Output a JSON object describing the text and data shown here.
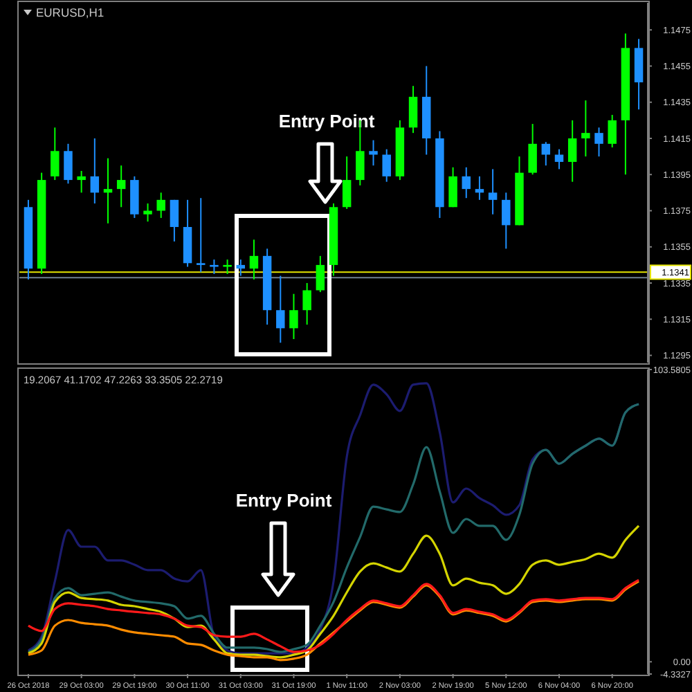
{
  "chart_data": [
    {
      "type": "candlestick",
      "title": "EURUSD,H1",
      "categories": [
        null,
        null,
        null,
        null,
        null,
        null,
        null,
        null,
        null,
        null,
        null,
        null,
        null,
        null,
        null,
        null,
        null,
        null,
        null,
        null,
        null,
        null,
        null,
        null,
        null,
        null,
        null,
        null,
        null,
        null,
        null,
        null,
        null,
        null,
        null,
        null,
        null,
        null,
        null,
        null,
        null,
        null,
        null,
        null,
        null,
        null,
        null
      ],
      "ohlc": [
        [
          1.1377,
          1.1381,
          1.1337,
          1.1343
        ],
        [
          1.1343,
          1.1396,
          1.134,
          1.1392
        ],
        [
          1.1394,
          1.1421,
          1.1392,
          1.1408
        ],
        [
          1.1408,
          1.1412,
          1.139,
          1.1392
        ],
        [
          1.1392,
          1.1397,
          1.1385,
          1.1394
        ],
        [
          1.1394,
          1.1415,
          1.1379,
          1.1385
        ],
        [
          1.1385,
          1.1404,
          1.1368,
          1.1387
        ],
        [
          1.1387,
          1.14,
          1.1377,
          1.1392
        ],
        [
          1.1392,
          1.1394,
          1.1371,
          1.1373
        ],
        [
          1.1373,
          1.1379,
          1.1369,
          1.1375
        ],
        [
          1.1375,
          1.1385,
          1.1371,
          1.1381
        ],
        [
          1.1381,
          1.1381,
          1.1358,
          1.1366
        ],
        [
          1.1366,
          1.1381,
          1.1344,
          1.1346
        ],
        [
          1.1346,
          1.1382,
          1.1341,
          1.1345
        ],
        [
          1.1345,
          1.1348,
          1.134,
          1.1344
        ],
        [
          1.1344,
          1.1348,
          1.134,
          1.1345
        ],
        [
          1.1345,
          1.1348,
          1.1339,
          1.1343
        ],
        [
          1.1343,
          1.1359,
          1.1337,
          1.135
        ],
        [
          1.135,
          1.1354,
          1.1312,
          1.132
        ],
        [
          1.132,
          1.1339,
          1.1302,
          1.131
        ],
        [
          1.131,
          1.1329,
          1.1304,
          1.132
        ],
        [
          1.132,
          1.1335,
          1.1312,
          1.1331
        ],
        [
          1.1331,
          1.135,
          1.133,
          1.1345
        ],
        [
          1.1345,
          1.1379,
          1.1339,
          1.1377
        ],
        [
          1.1377,
          1.1405,
          1.1376,
          1.1392
        ],
        [
          1.1392,
          1.1425,
          1.1389,
          1.1408
        ],
        [
          1.1408,
          1.1414,
          1.14,
          1.1406
        ],
        [
          1.1406,
          1.1409,
          1.1391,
          1.1394
        ],
        [
          1.1394,
          1.1425,
          1.1392,
          1.1421
        ],
        [
          1.1421,
          1.1444,
          1.1418,
          1.1438
        ],
        [
          1.1438,
          1.1455,
          1.1406,
          1.1415
        ],
        [
          1.1415,
          1.1419,
          1.1371,
          1.1377
        ],
        [
          1.1377,
          1.1399,
          1.1377,
          1.1394
        ],
        [
          1.1394,
          1.1399,
          1.1382,
          1.1387
        ],
        [
          1.1387,
          1.1394,
          1.1381,
          1.1385
        ],
        [
          1.1385,
          1.1398,
          1.1373,
          1.1381
        ],
        [
          1.1381,
          1.1385,
          1.1354,
          1.1367
        ],
        [
          1.1367,
          1.1405,
          1.1367,
          1.1396
        ],
        [
          1.1396,
          1.1423,
          1.1395,
          1.1412
        ],
        [
          1.1412,
          1.1413,
          1.14,
          1.1406
        ],
        [
          1.1406,
          1.1409,
          1.1398,
          1.1402
        ],
        [
          1.1402,
          1.1425,
          1.1391,
          1.1415
        ],
        [
          1.1415,
          1.1436,
          1.1405,
          1.1418
        ],
        [
          1.1418,
          1.1421,
          1.1405,
          1.1412
        ],
        [
          1.1412,
          1.1428,
          1.141,
          1.1425
        ],
        [
          1.1425,
          1.1473,
          1.1395,
          1.1465
        ],
        [
          1.1465,
          1.147,
          1.1431,
          1.1446
        ]
      ],
      "colors": [
        "#1e90ff",
        "#00ff00",
        "#00ff00",
        "#1e90ff",
        "#00ff00",
        "#1e90ff",
        "#00ff00",
        "#00ff00",
        "#1e90ff",
        "#00ff00",
        "#00ff00",
        "#1e90ff",
        "#1e90ff",
        "#1e90ff",
        "#1e90ff",
        "#00ff00",
        "#1e90ff",
        "#00ff00",
        "#1e90ff",
        "#1e90ff",
        "#00ff00",
        "#00ff00",
        "#00ff00",
        "#00ff00",
        "#00ff00",
        "#00ff00",
        "#1e90ff",
        "#1e90ff",
        "#00ff00",
        "#00ff00",
        "#1e90ff",
        "#1e90ff",
        "#00ff00",
        "#1e90ff",
        "#1e90ff",
        "#1e90ff",
        "#1e90ff",
        "#00ff00",
        "#00ff00",
        "#1e90ff",
        "#1e90ff",
        "#00ff00",
        "#00ff00",
        "#1e90ff",
        "#00ff00",
        "#00ff00",
        "#1e90ff"
      ],
      "ylim": [
        1.1291,
        1.149
      ],
      "yticks": [
        1.1475,
        1.1455,
        1.1435,
        1.1415,
        1.1395,
        1.1375,
        1.1355,
        1.1335,
        1.1315,
        1.1295
      ],
      "ref_lines": [
        {
          "axis": "y",
          "value": 1.1341,
          "label": "1.1341",
          "color": "#e6e600"
        },
        {
          "axis": "y",
          "value": 1.1338,
          "label": null,
          "color": "#708090"
        }
      ],
      "annotations": [
        "Entry Point"
      ],
      "tick_labels": "y"
    },
    {
      "type": "line",
      "title": "19.2067 41.1702 47.2263 33.3505 22.2719",
      "categories": [
        "26 Oct 2018",
        null,
        null,
        null,
        "29 Oct 03:00",
        null,
        null,
        null,
        "29 Oct 19:00",
        null,
        null,
        null,
        "30 Oct 11:00",
        null,
        null,
        null,
        "31 Oct 03:00",
        null,
        null,
        null,
        "31 Oct 19:00",
        null,
        null,
        null,
        "1 Nov 11:00",
        null,
        null,
        null,
        "2 Nov 03:00",
        null,
        null,
        null,
        "2 Nov 19:00",
        null,
        null,
        null,
        "5 Nov 12:00",
        null,
        null,
        null,
        "6 Nov 04:00",
        null,
        null,
        null,
        "6 Nov 20:00",
        null,
        null
      ],
      "series": [
        {
          "color": "#1c1c70",
          "values": [
            4.0,
            8.9,
            28.5,
            46.7,
            40.8,
            40.8,
            35.9,
            35.9,
            34.4,
            32.5,
            32.5,
            29.5,
            28.5,
            32.5,
            8.9,
            4.0,
            3.0,
            3.0,
            3.0,
            3.0,
            3.0,
            5.0,
            11.4,
            28.5,
            72.7,
            87.4,
            98.2,
            94.8,
            88.9,
            98.2,
            98.7,
            81.5,
            56.5,
            61.4,
            58.0,
            55.5,
            52.1,
            55.5,
            71.7,
            75.1,
            70.2,
            73.7,
            76.6,
            79.1,
            76.6,
            88.4,
            91.3
          ]
        },
        {
          "color": "#226a6a",
          "values": [
            3.5,
            7.9,
            22.6,
            26.1,
            23.6,
            24.1,
            24.6,
            23.1,
            21.7,
            21.2,
            20.7,
            19.7,
            15.3,
            16.3,
            9.9,
            5.0,
            5.0,
            5.0,
            4.5,
            3.5,
            4.5,
            6.0,
            12.8,
            21.2,
            33.4,
            44.2,
            55.0,
            54.0,
            53.1,
            62.9,
            76.1,
            60.4,
            45.7,
            50.6,
            48.2,
            48.2,
            43.2,
            52.1,
            70.2,
            75.1,
            70.2,
            73.7,
            76.6,
            79.1,
            76.6,
            88.4,
            91.3
          ]
        },
        {
          "color": "#d4d400",
          "values": [
            3.0,
            6.5,
            21.2,
            24.6,
            22.6,
            22.2,
            21.7,
            20.2,
            19.7,
            18.7,
            17.7,
            15.3,
            12.3,
            12.8,
            7.9,
            3.0,
            2.5,
            2.5,
            2.0,
            1.6,
            2.5,
            4.0,
            9.9,
            16.3,
            24.6,
            32.0,
            34.9,
            33.4,
            32.0,
            38.3,
            44.7,
            38.3,
            27.1,
            29.5,
            28.0,
            27.1,
            24.1,
            27.6,
            34.4,
            35.9,
            34.4,
            35.4,
            36.4,
            38.3,
            36.9,
            43.2,
            48.2
          ]
        },
        {
          "color": "#ff8c00",
          "values": [
            2.5,
            4.0,
            12.8,
            14.8,
            13.8,
            13.3,
            12.8,
            11.4,
            10.4,
            9.9,
            9.4,
            8.9,
            6.5,
            6.0,
            4.0,
            2.5,
            2.0,
            1.6,
            1.6,
            0.6,
            1.1,
            2.5,
            6.5,
            10.4,
            14.3,
            18.2,
            21.2,
            20.2,
            19.2,
            23.1,
            27.1,
            23.1,
            16.8,
            18.2,
            17.3,
            16.3,
            14.3,
            17.3,
            21.2,
            21.7,
            21.2,
            21.7,
            22.2,
            22.2,
            21.7,
            25.6,
            28.5
          ]
        },
        {
          "color": "#ff1a1a",
          "values": [
            12.8,
            10.9,
            18.7,
            20.7,
            20.2,
            19.7,
            18.7,
            18.2,
            17.7,
            17.3,
            16.8,
            15.3,
            12.8,
            12.3,
            9.4,
            8.9,
            8.9,
            9.9,
            7.9,
            5.5,
            3.5,
            4.0,
            6.0,
            9.9,
            14.8,
            18.7,
            21.7,
            20.7,
            19.7,
            23.6,
            27.6,
            23.6,
            17.3,
            18.7,
            17.7,
            16.8,
            14.8,
            17.7,
            21.7,
            22.2,
            21.7,
            22.2,
            22.6,
            22.6,
            22.2,
            26.1,
            29.0
          ]
        }
      ],
      "ylim": [
        -4.3327,
        103.5805
      ],
      "yticks": [
        103.5805,
        {
          "value": 0,
          "label": "0.00"
        },
        -4.3327
      ],
      "annotations": [
        "Entry Point"
      ],
      "marker": "none",
      "line_style": "solid"
    }
  ]
}
